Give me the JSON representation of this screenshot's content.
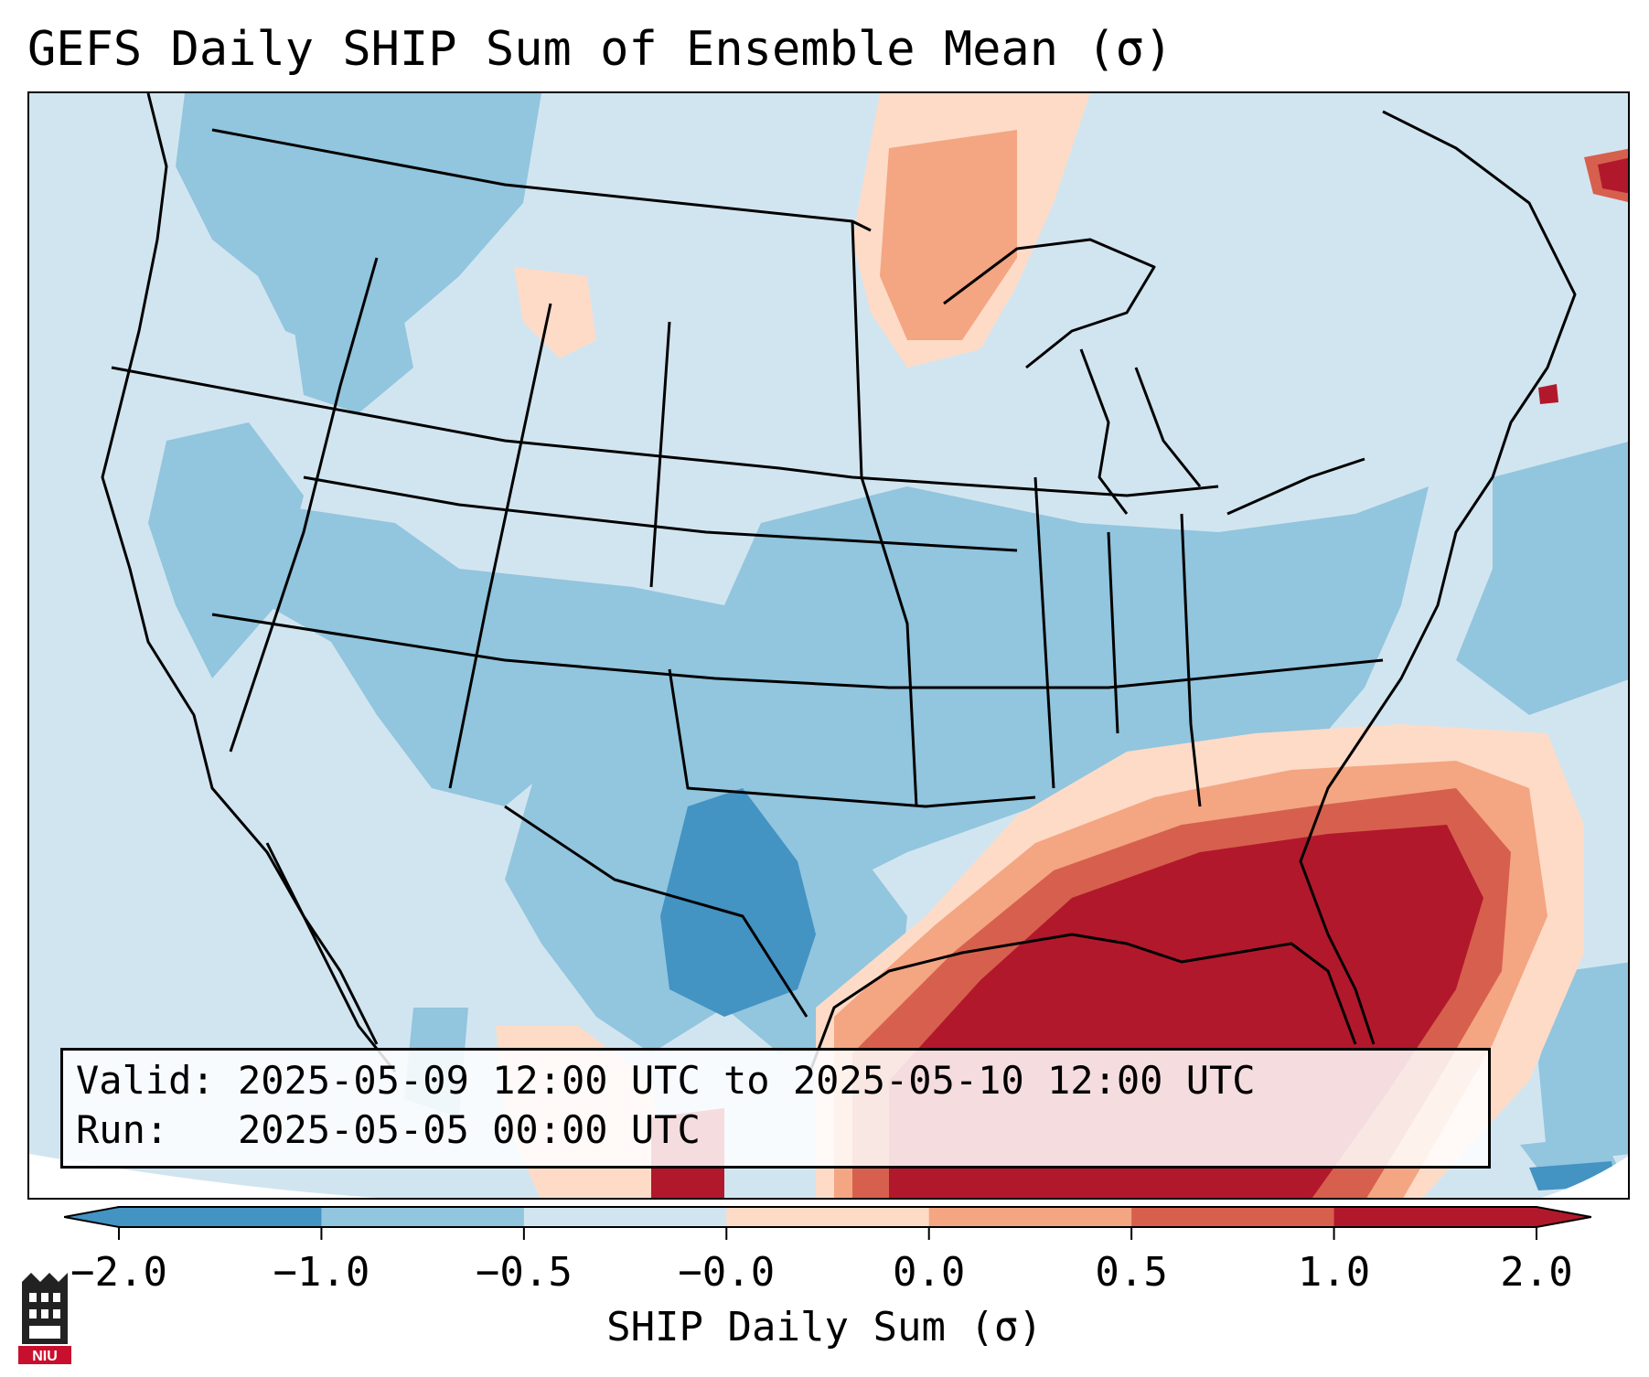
{
  "title": "GEFS Daily SHIP Sum of Ensemble Mean (σ)",
  "info": {
    "valid_line": "Valid: 2025-05-09 12:00 UTC to 2025-05-10 12:00 UTC",
    "run_line": "Run:   2025-05-05 00:00 UTC"
  },
  "colorbar": {
    "label": "SHIP Daily Sum (σ)",
    "ticks": [
      "−2.0",
      "−1.0",
      "−0.5",
      "−0.0",
      "0.0",
      "0.5",
      "1.0",
      "2.0"
    ],
    "colors": [
      "#4393c3",
      "#92c5de",
      "#d1e5f0",
      "#f7f7f7",
      "#fddbc7",
      "#f4a582",
      "#d6604d",
      "#b2182b"
    ],
    "under_color": "#4393c3",
    "over_color": "#b2182b"
  },
  "logo": {
    "text": "NIU"
  }
}
